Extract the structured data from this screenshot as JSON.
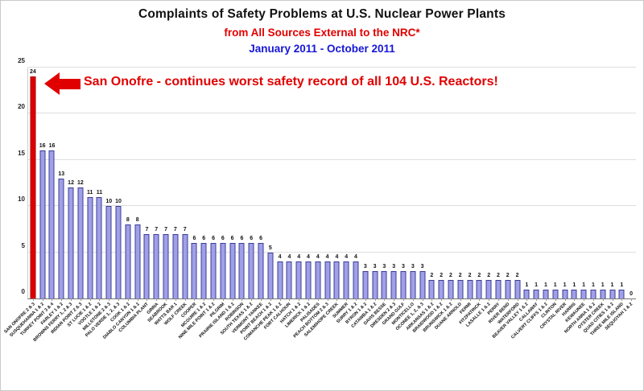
{
  "header": {
    "title": "Complaints of Safety Problems at U.S. Nuclear Power Plants",
    "subtitle": "from All Sources External to the NRC*",
    "date_range": "January 2011 - October 2011",
    "subtitle_color": "#e10000",
    "date_color": "#1616d6"
  },
  "annotation": {
    "text": "San Onofre - continues worst safety record of all 104 U.S. Reactors!",
    "color": "#e10000",
    "arrow": "left-arrow-icon"
  },
  "chart_data": {
    "type": "bar",
    "title": "Complaints of Safety Problems at U.S. Nuclear Power Plants",
    "subtitle": "from All Sources External to the NRC*",
    "date_range": "January 2011 - October 2011",
    "xlabel": "",
    "ylabel": "",
    "ylim": [
      0,
      25
    ],
    "yticks": [
      0,
      5,
      10,
      15,
      20,
      25
    ],
    "grid": true,
    "legend": "none",
    "bar_color": "#a0a0e8",
    "bar_border_color": "#3c3c96",
    "highlight_index": 0,
    "highlight_color": "#dd0000",
    "categories": [
      "SAN ONOFRE 2 & 3",
      "SUSQUEHANNA 1 & 2",
      "TURKEY POINT 3 & 4",
      "FARLEY 1 & 2",
      "BROWNS FERRY 1, 2 & 3",
      "INDIAN POINT 2 & 3",
      "ST LUCIE 1 & 2",
      "VOGTLE 1 & 2",
      "MILLSTONE 2 & 3",
      "PALO VERDE 1, 2, & 3",
      "COOK 1 & 2",
      "DIABLO CANYON 1 & 2",
      "COLUMBIA PLANT",
      "GINNA",
      "SEABROOK",
      "WATTS BAR 1",
      "WOLF CREEK",
      "COOPER",
      "MCGUIRE 1 & 2",
      "NINE MILE POINT 1 & 2",
      "PILGRIM",
      "PRAIRIE ISLAND 1 & 2",
      "ROBINSON",
      "SOUTH TEXAS 1 & 2",
      "VERMONT YANKEE",
      "POINT BEACH 1 & 2",
      "COMANCHE PEAK 1 & 2",
      "FORT CALHOUN",
      "HATCH 1 & 2",
      "LIMERICK 1 & 2",
      "PALISADES",
      "PEACH BOTTOM 2 & 3",
      "SALEM/HOPE CREEK",
      "SUMMER",
      "SURRY 1 & 2",
      "BYRON 1 & 2",
      "CATAWBA 1 & 2",
      "DAVIS BESSE",
      "DRESDEN 2 & 3",
      "GRAND GULF",
      "MONTICELLO",
      "OCONEE 1, 2, & 3",
      "ARKANSAS 1 & 2",
      "BRAIDWOOD 1 & 2",
      "BRUNSWICK 1 & 2",
      "DUANE ARNOLD",
      "FERMI",
      "FITZPATRICK",
      "LASALLE 1 & 2",
      "PERRY",
      "RIVER BEND",
      "WATERFORD",
      "BEAVER VALLEY 1 & 2",
      "CALLAWAY",
      "CALVERT CLIFFS 1 & 2",
      "CLINTON",
      "CRYSTAL RIVER",
      "HARRIS",
      "KEWAUNEE",
      "NORTH ANNA 1 & 2",
      "OYSTER CREEK",
      "QUAD CITIES 1 & 2",
      "THREE MILE ISLAND",
      "SEQUOYAH 1 & 2"
    ],
    "values": [
      24,
      16,
      16,
      13,
      12,
      12,
      11,
      11,
      10,
      10,
      8,
      8,
      7,
      7,
      7,
      7,
      7,
      6,
      6,
      6,
      6,
      6,
      6,
      6,
      6,
      5,
      4,
      4,
      4,
      4,
      4,
      4,
      4,
      4,
      4,
      3,
      3,
      3,
      3,
      3,
      3,
      3,
      2,
      2,
      2,
      2,
      2,
      2,
      2,
      2,
      2,
      2,
      1,
      1,
      1,
      1,
      1,
      1,
      1,
      1,
      1,
      1,
      1,
      0
    ],
    "annotation": "San Onofre - continues worst safety record of all 104 U.S. Reactors!"
  }
}
